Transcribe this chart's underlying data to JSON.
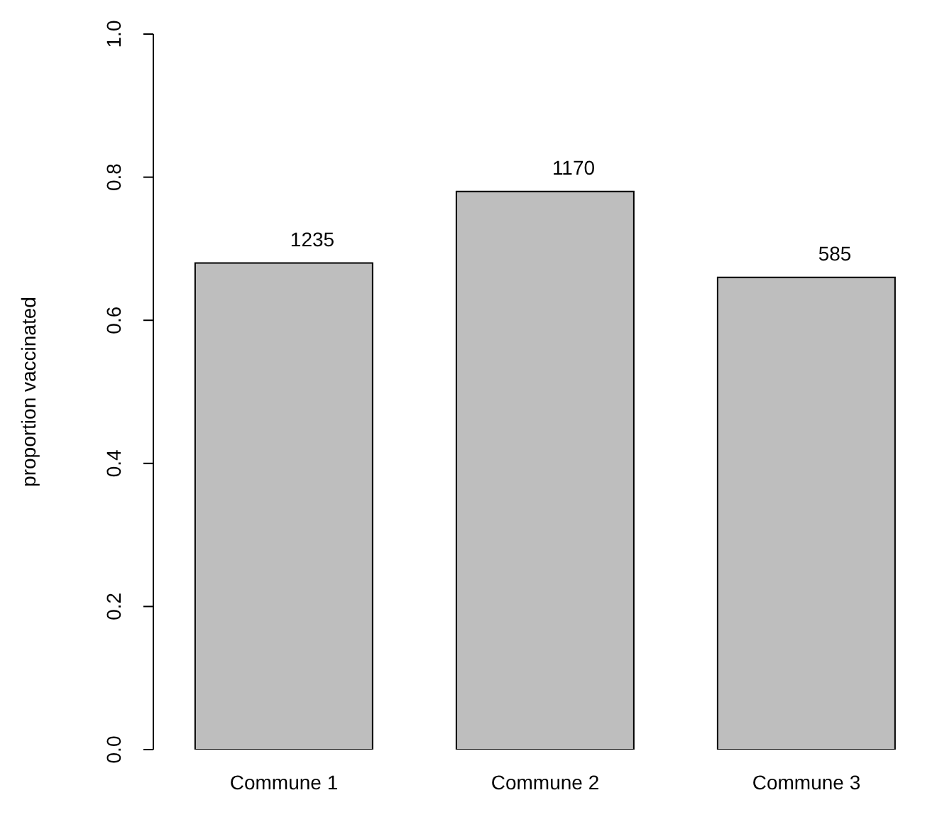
{
  "chart_data": {
    "type": "bar",
    "ylabel": "proportion vaccinated",
    "categories": [
      "Commune 1",
      "Commune 2",
      "Commune 3"
    ],
    "values": [
      0.68,
      0.78,
      0.66
    ],
    "annotations": [
      {
        "text": "1235",
        "x": "Commune 1",
        "y": 0.68
      },
      {
        "text": "1170",
        "x": "Commune 2",
        "y": 0.78
      },
      {
        "text": "585",
        "x": "Commune 3",
        "y": 0.66
      }
    ],
    "color": "#bebebe",
    "ylim": [
      0,
      1
    ],
    "yticks": [
      {
        "value": 0,
        "label": "0.0"
      },
      {
        "value": 0.2,
        "label": "0.2"
      },
      {
        "value": 0.4,
        "label": "0.4"
      },
      {
        "value": 0.6,
        "label": "0.6"
      },
      {
        "value": 0.8,
        "label": "0.8"
      },
      {
        "value": 1,
        "label": "1.0"
      }
    ],
    "grid": false
  }
}
